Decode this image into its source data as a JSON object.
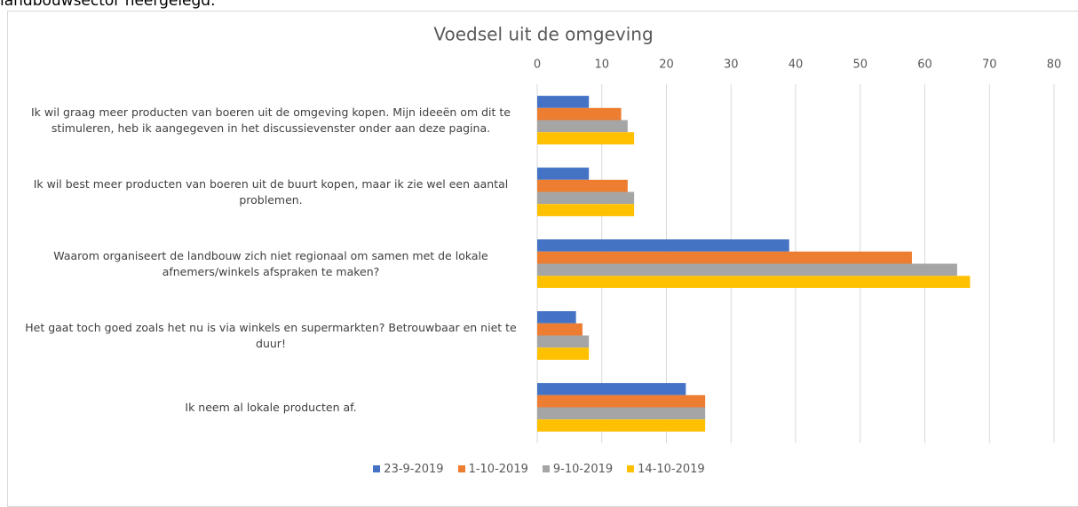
{
  "page_text": "landbouwsector neergelegd.",
  "chart_data": {
    "type": "bar",
    "orientation": "horizontal",
    "title": "Voedsel uit de omgeving",
    "categories": [
      "Ik wil graag meer producten van boeren uit de omgeving kopen. Mijn ideeën om dit te stimuleren, heb ik aangegeven in het discussievenster onder aan deze pagina.",
      "Ik wil best meer producten van boeren uit de buurt kopen, maar ik zie wel een aantal problemen.",
      "Waarom organiseert de landbouw zich niet regionaal om samen met de lokale afnemers/winkels afspraken te maken?",
      "Het gaat toch goed zoals het nu is via winkels en supermarkten? Betrouwbaar en niet te duur!",
      "Ik neem al lokale producten af."
    ],
    "series": [
      {
        "name": "23-9-2019",
        "color": "#4472c4",
        "values": [
          8,
          8,
          39,
          6,
          23
        ]
      },
      {
        "name": "1-10-2019",
        "color": "#ed7d31",
        "values": [
          13,
          14,
          58,
          7,
          26
        ]
      },
      {
        "name": "9-10-2019",
        "color": "#a5a5a5",
        "values": [
          14,
          15,
          65,
          8,
          26
        ]
      },
      {
        "name": "14-10-2019",
        "color": "#ffc000",
        "values": [
          15,
          15,
          67,
          8,
          26
        ]
      }
    ],
    "xlim": [
      0,
      80
    ],
    "xticks": [
      0,
      10,
      20,
      30,
      40,
      50,
      60,
      70,
      80
    ],
    "grid": true,
    "legend": "bottom"
  }
}
